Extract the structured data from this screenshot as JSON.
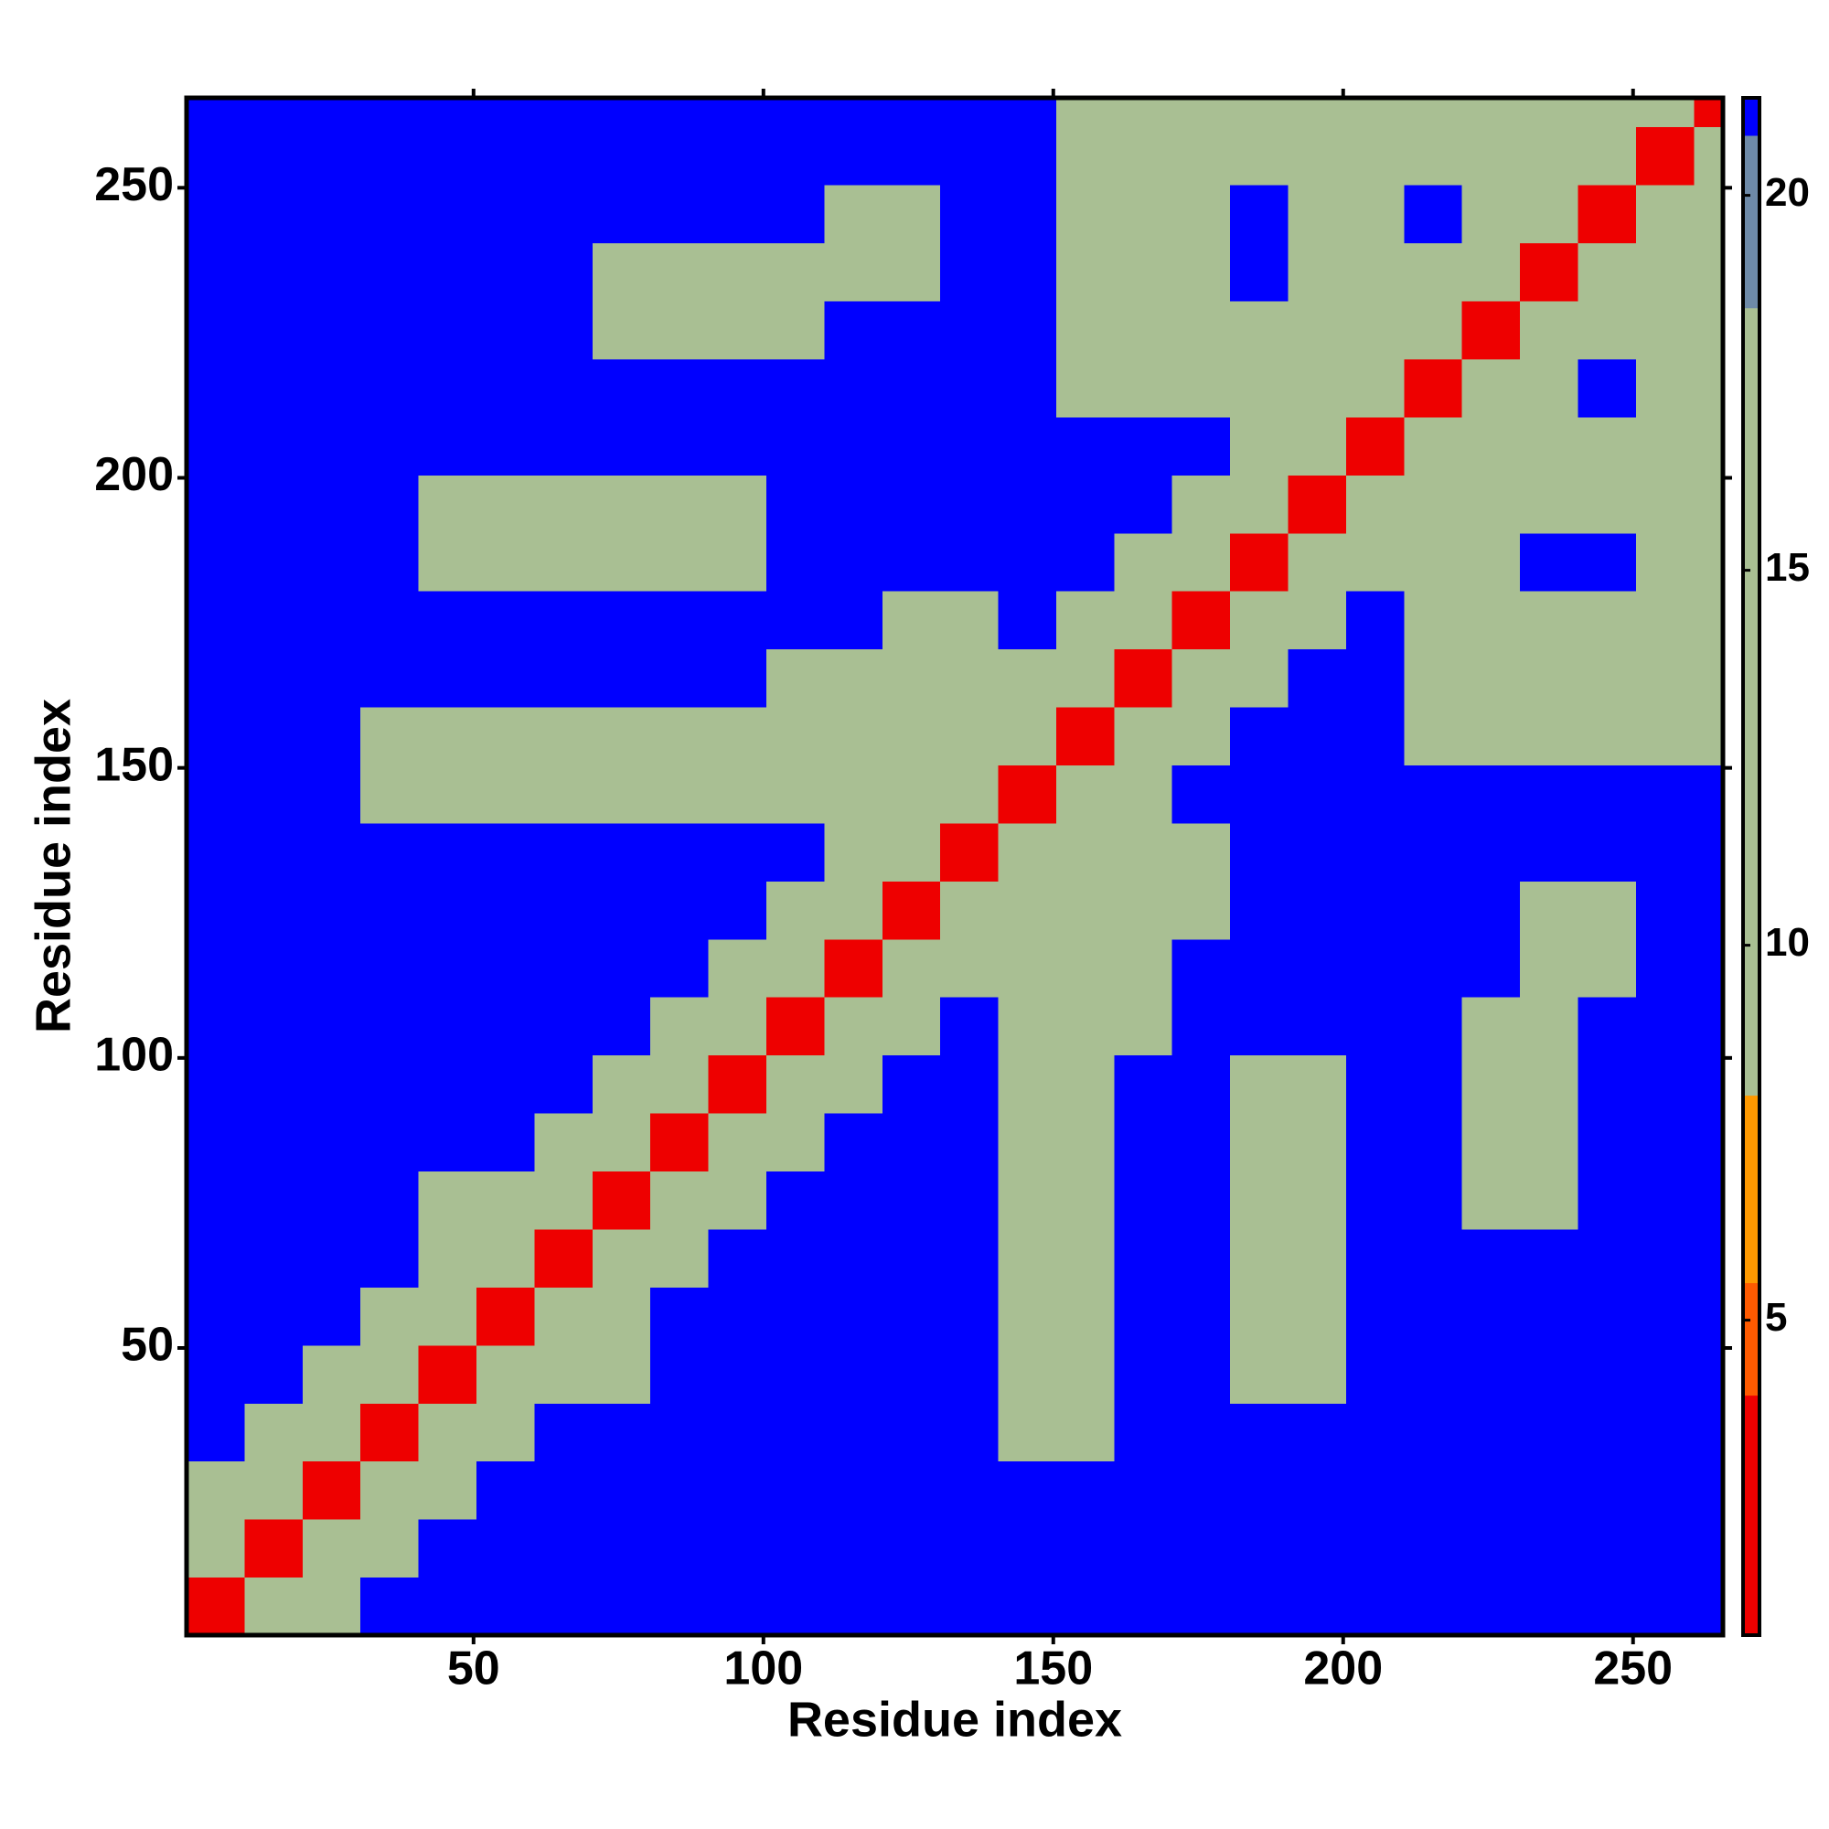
{
  "chart_data": {
    "type": "heatmap",
    "x_label": "Residue index",
    "y_label": "Residue index",
    "xlim": [
      0.5,
      265.5
    ],
    "ylim": [
      0.5,
      265.5
    ],
    "xticks": [
      50,
      100,
      150,
      200,
      250
    ],
    "yticks": [
      50,
      100,
      150,
      200,
      250
    ],
    "xbins": [
      0.5,
      10.5,
      20.5,
      30.5,
      40.5,
      50.5,
      60.5,
      70.5,
      80.5,
      90.5,
      100.5,
      110.5,
      120.5,
      130.5,
      140.5,
      150.5,
      160.5,
      170.5,
      180.5,
      190.5,
      200.5,
      210.5,
      220.5,
      230.5,
      240.5,
      250.5,
      260.5,
      265.5
    ],
    "ybins": [
      0.5,
      10.5,
      20.5,
      30.5,
      40.5,
      50.5,
      60.5,
      70.5,
      80.5,
      90.5,
      100.5,
      110.5,
      120.5,
      130.5,
      140.5,
      150.5,
      160.5,
      170.5,
      180.5,
      190.5,
      200.5,
      210.5,
      220.5,
      230.5,
      240.5,
      250.5,
      260.5,
      265.5
    ],
    "zlim": [
      0.8,
      21.3
    ],
    "zticks": [
      5,
      10,
      15,
      20
    ],
    "colorscale": [
      [
        0.8,
        "#ee0000"
      ],
      [
        4,
        "#ff5a00"
      ],
      [
        5.5,
        "#ff9900"
      ],
      [
        8,
        "#a9bf93"
      ],
      [
        18.5,
        "#6e8aa8"
      ],
      [
        20.8,
        "#0000ff"
      ]
    ],
    "z": [
      [
        3,
        10,
        16,
        21,
        21,
        21,
        21,
        21,
        21,
        21,
        21,
        21,
        21,
        21,
        21,
        21,
        21,
        21,
        21,
        21,
        21,
        21,
        21,
        21,
        21,
        21,
        21
      ],
      [
        10,
        3,
        10,
        16,
        21,
        21,
        21,
        21,
        21,
        21,
        21,
        21,
        21,
        21,
        21,
        21,
        21,
        21,
        21,
        21,
        21,
        21,
        21,
        21,
        21,
        21,
        21
      ],
      [
        16,
        10,
        3,
        10,
        16,
        21,
        21,
        21,
        21,
        21,
        21,
        21,
        21,
        21,
        21,
        21,
        21,
        21,
        21,
        21,
        21,
        21,
        21,
        21,
        21,
        21,
        21
      ],
      [
        21,
        16,
        10,
        3,
        10,
        16,
        21,
        21,
        21,
        21,
        21,
        21,
        21,
        21,
        12,
        12,
        21,
        21,
        21,
        21,
        21,
        21,
        21,
        21,
        21,
        21,
        21
      ],
      [
        21,
        21,
        16,
        10,
        3,
        10,
        11,
        11,
        21,
        21,
        21,
        21,
        21,
        21,
        12,
        12,
        21,
        21,
        13,
        13,
        21,
        21,
        21,
        21,
        21,
        21,
        21
      ],
      [
        21,
        21,
        21,
        16,
        10,
        3,
        10,
        11,
        21,
        21,
        21,
        21,
        21,
        21,
        12,
        12,
        21,
        21,
        13,
        13,
        21,
        21,
        21,
        21,
        21,
        21,
        21
      ],
      [
        21,
        21,
        21,
        21,
        11,
        10,
        3,
        10,
        16,
        21,
        21,
        21,
        21,
        21,
        12,
        12,
        21,
        21,
        13,
        13,
        21,
        21,
        21,
        21,
        21,
        21,
        21
      ],
      [
        21,
        21,
        21,
        21,
        11,
        11,
        10,
        3,
        10,
        16,
        21,
        21,
        21,
        21,
        12,
        12,
        21,
        21,
        13,
        13,
        21,
        21,
        13,
        13,
        21,
        21,
        21
      ],
      [
        21,
        21,
        21,
        21,
        21,
        21,
        16,
        10,
        3,
        10,
        16,
        21,
        21,
        21,
        12,
        12,
        21,
        21,
        13,
        13,
        21,
        21,
        13,
        13,
        21,
        21,
        21
      ],
      [
        21,
        21,
        21,
        21,
        21,
        21,
        21,
        16,
        10,
        3,
        10,
        16,
        21,
        21,
        12,
        12,
        21,
        21,
        13,
        13,
        21,
        21,
        13,
        13,
        21,
        21,
        21
      ],
      [
        21,
        21,
        21,
        21,
        21,
        21,
        21,
        21,
        16,
        10,
        3,
        10,
        13,
        21,
        12,
        12,
        12,
        21,
        21,
        21,
        21,
        21,
        13,
        13,
        21,
        21,
        21
      ],
      [
        21,
        21,
        21,
        21,
        21,
        21,
        21,
        21,
        21,
        16,
        10,
        3,
        10,
        13,
        12,
        12,
        12,
        21,
        21,
        21,
        21,
        21,
        21,
        13,
        13,
        21,
        21
      ],
      [
        21,
        21,
        21,
        21,
        21,
        21,
        21,
        21,
        21,
        21,
        13,
        10,
        3,
        10,
        13,
        12,
        12,
        12,
        21,
        21,
        21,
        21,
        21,
        13,
        13,
        21,
        21
      ],
      [
        21,
        21,
        21,
        21,
        21,
        21,
        21,
        21,
        21,
        21,
        21,
        13,
        10,
        3,
        10,
        12,
        12,
        12,
        21,
        21,
        21,
        21,
        21,
        21,
        21,
        21,
        21
      ],
      [
        21,
        21,
        21,
        12,
        12,
        12,
        12,
        12,
        12,
        12,
        12,
        12,
        13,
        10,
        3,
        10,
        13,
        21,
        21,
        21,
        21,
        21,
        21,
        21,
        21,
        21,
        21
      ],
      [
        21,
        21,
        21,
        12,
        12,
        12,
        12,
        12,
        12,
        12,
        12,
        12,
        12,
        12,
        10,
        3,
        10,
        13,
        21,
        21,
        21,
        13,
        13,
        13,
        13,
        13,
        13
      ],
      [
        21,
        21,
        21,
        21,
        21,
        21,
        21,
        21,
        21,
        21,
        12,
        12,
        12,
        12,
        13,
        10,
        3,
        10,
        13,
        21,
        21,
        13,
        13,
        13,
        13,
        13,
        13
      ],
      [
        21,
        21,
        21,
        21,
        21,
        21,
        21,
        21,
        21,
        21,
        21,
        21,
        12,
        12,
        21,
        13,
        10,
        3,
        10,
        13,
        21,
        13,
        13,
        13,
        13,
        13,
        13
      ],
      [
        21,
        21,
        21,
        21,
        13,
        13,
        13,
        13,
        13,
        13,
        21,
        21,
        21,
        21,
        21,
        21,
        13,
        10,
        3,
        10,
        13,
        13,
        13,
        21,
        21,
        13,
        13
      ],
      [
        21,
        21,
        21,
        21,
        13,
        13,
        13,
        13,
        13,
        13,
        21,
        21,
        21,
        21,
        21,
        21,
        21,
        13,
        10,
        3,
        10,
        13,
        13,
        13,
        13,
        13,
        13
      ],
      [
        21,
        21,
        21,
        21,
        21,
        21,
        21,
        21,
        21,
        21,
        21,
        21,
        21,
        21,
        21,
        21,
        21,
        21,
        13,
        10,
        3,
        10,
        13,
        13,
        13,
        13,
        13
      ],
      [
        21,
        21,
        21,
        21,
        21,
        21,
        21,
        21,
        21,
        21,
        21,
        21,
        21,
        21,
        21,
        13,
        13,
        13,
        13,
        13,
        10,
        3,
        10,
        16,
        21,
        12,
        12
      ],
      [
        21,
        21,
        21,
        21,
        21,
        21,
        21,
        13,
        13,
        13,
        13,
        21,
        21,
        21,
        21,
        13,
        13,
        13,
        13,
        13,
        13,
        10,
        3,
        10,
        16,
        12,
        12
      ],
      [
        21,
        21,
        21,
        21,
        21,
        21,
        21,
        13,
        13,
        13,
        13,
        13,
        13,
        21,
        21,
        13,
        13,
        13,
        21,
        13,
        13,
        16,
        10,
        3,
        10,
        12,
        16
      ],
      [
        21,
        21,
        21,
        21,
        21,
        21,
        21,
        21,
        21,
        21,
        21,
        13,
        13,
        21,
        21,
        13,
        13,
        13,
        21,
        13,
        13,
        21,
        16,
        10,
        3,
        10,
        12
      ],
      [
        21,
        21,
        21,
        21,
        21,
        21,
        21,
        21,
        21,
        21,
        21,
        21,
        21,
        21,
        21,
        13,
        13,
        13,
        13,
        13,
        13,
        12,
        12,
        12,
        10,
        3,
        10
      ],
      [
        21,
        21,
        21,
        21,
        21,
        21,
        21,
        21,
        21,
        21,
        21,
        21,
        21,
        21,
        21,
        13,
        13,
        13,
        13,
        13,
        13,
        12,
        12,
        16,
        12,
        10,
        3
      ]
    ]
  }
}
